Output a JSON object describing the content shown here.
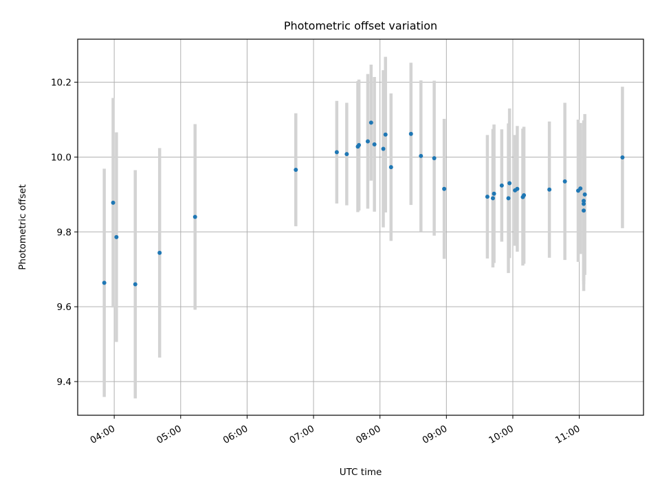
{
  "chart_data": {
    "type": "scatter",
    "title": "Photometric offset variation",
    "xlabel": "UTC time",
    "ylabel": "Photometric offset",
    "x_unit": "UTC time (HH:MM)",
    "xlim": [
      "03:27",
      "11:58"
    ],
    "ylim": [
      9.31,
      10.315
    ],
    "x_ticks": [
      "04:00",
      "05:00",
      "06:00",
      "07:00",
      "08:00",
      "09:00",
      "10:00",
      "11:00"
    ],
    "y_ticks": [
      "9.4",
      "9.6",
      "9.8",
      "10.0",
      "10.2"
    ],
    "grid": true,
    "errorbar_color": "#d3d3d3",
    "marker_color": "#1f77b4",
    "points": [
      {
        "t": "03:51",
        "y": 9.664,
        "err": 0.305
      },
      {
        "t": "03:59",
        "y": 9.878,
        "err": 0.28
      },
      {
        "t": "04:02",
        "y": 9.786,
        "err": 0.28
      },
      {
        "t": "04:19",
        "y": 9.66,
        "err": 0.305
      },
      {
        "t": "04:41",
        "y": 9.744,
        "err": 0.28
      },
      {
        "t": "05:13",
        "y": 9.84,
        "err": 0.248
      },
      {
        "t": "06:44",
        "y": 9.966,
        "err": 0.151
      },
      {
        "t": "07:21",
        "y": 10.013,
        "err": 0.137
      },
      {
        "t": "07:30",
        "y": 10.008,
        "err": 0.137
      },
      {
        "t": "07:40",
        "y": 10.028,
        "err": 0.175
      },
      {
        "t": "07:41",
        "y": 10.032,
        "err": 0.175
      },
      {
        "t": "07:49",
        "y": 10.042,
        "err": 0.18
      },
      {
        "t": "07:52",
        "y": 10.092,
        "err": 0.155
      },
      {
        "t": "07:55",
        "y": 10.034,
        "err": 0.18
      },
      {
        "t": "08:03",
        "y": 10.022,
        "err": 0.21
      },
      {
        "t": "08:05",
        "y": 10.06,
        "err": 0.208
      },
      {
        "t": "08:10",
        "y": 9.973,
        "err": 0.197
      },
      {
        "t": "08:28",
        "y": 10.062,
        "err": 0.19
      },
      {
        "t": "08:37",
        "y": 10.003,
        "err": 0.202
      },
      {
        "t": "08:49",
        "y": 9.997,
        "err": 0.207
      },
      {
        "t": "08:58",
        "y": 9.915,
        "err": 0.187
      },
      {
        "t": "09:37",
        "y": 9.894,
        "err": 0.165
      },
      {
        "t": "09:42",
        "y": 9.89,
        "err": 0.185
      },
      {
        "t": "09:43",
        "y": 9.902,
        "err": 0.185
      },
      {
        "t": "09:50",
        "y": 9.924,
        "err": 0.15
      },
      {
        "t": "09:56",
        "y": 9.89,
        "err": 0.2
      },
      {
        "t": "09:57",
        "y": 9.93,
        "err": 0.2
      },
      {
        "t": "10:02",
        "y": 9.911,
        "err": 0.148
      },
      {
        "t": "10:04",
        "y": 9.915,
        "err": 0.168
      },
      {
        "t": "10:09",
        "y": 9.893,
        "err": 0.183
      },
      {
        "t": "10:10",
        "y": 9.898,
        "err": 0.183
      },
      {
        "t": "10:33",
        "y": 9.913,
        "err": 0.182
      },
      {
        "t": "10:47",
        "y": 9.935,
        "err": 0.21
      },
      {
        "t": "10:59",
        "y": 9.91,
        "err": 0.19
      },
      {
        "t": "11:01",
        "y": 9.916,
        "err": 0.175
      },
      {
        "t": "11:04",
        "y": 9.875,
        "err": 0.215
      },
      {
        "t": "11:04",
        "y": 9.883,
        "err": 0.215
      },
      {
        "t": "11:04",
        "y": 9.857,
        "err": 0.215
      },
      {
        "t": "11:05",
        "y": 9.9,
        "err": 0.215
      },
      {
        "t": "11:39",
        "y": 9.999,
        "err": 0.189
      }
    ]
  }
}
